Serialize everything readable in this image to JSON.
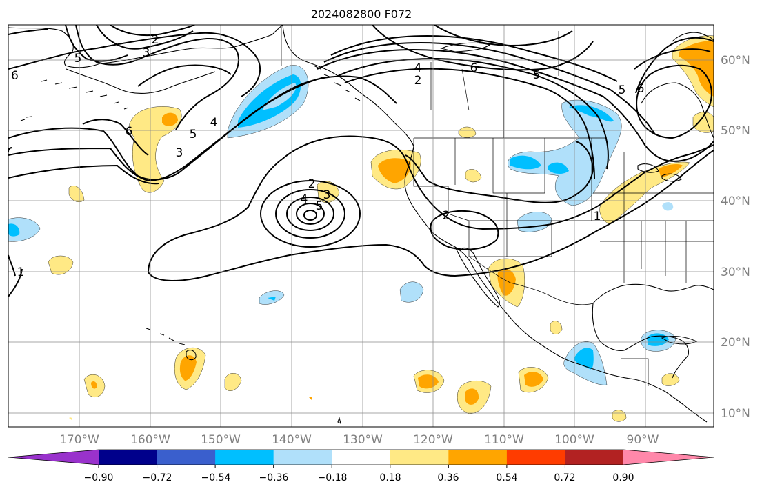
{
  "title": "2024082800 F072",
  "map": {
    "lon_labels": [
      "170°W",
      "160°W",
      "150°W",
      "140°W",
      "130°W",
      "120°W",
      "110°W",
      "100°W",
      "90°W"
    ],
    "lat_labels": [
      "60°N",
      "50°N",
      "40°N",
      "30°N",
      "20°N",
      "10°N"
    ],
    "contour_labels": [
      "6",
      "3",
      "2",
      "5",
      "3",
      "6",
      "5",
      "4",
      "4",
      "6",
      "2",
      "5",
      "5",
      "6",
      "2",
      "3",
      "4",
      "5",
      "2",
      "1",
      "1"
    ],
    "grid": true
  },
  "colorbar": {
    "ticks": [
      "−0.90",
      "−0.72",
      "−0.54",
      "−0.36",
      "−0.18",
      "0.18",
      "0.36",
      "0.54",
      "0.72",
      "0.90"
    ],
    "colors": [
      "#9932cc",
      "#00008b",
      "#3a5fcd",
      "#00bfff",
      "#b0e0fa",
      "#ffffff",
      "#ffe985",
      "#ffa500",
      "#ff3c00",
      "#b22222",
      "#ff88aa"
    ]
  }
}
